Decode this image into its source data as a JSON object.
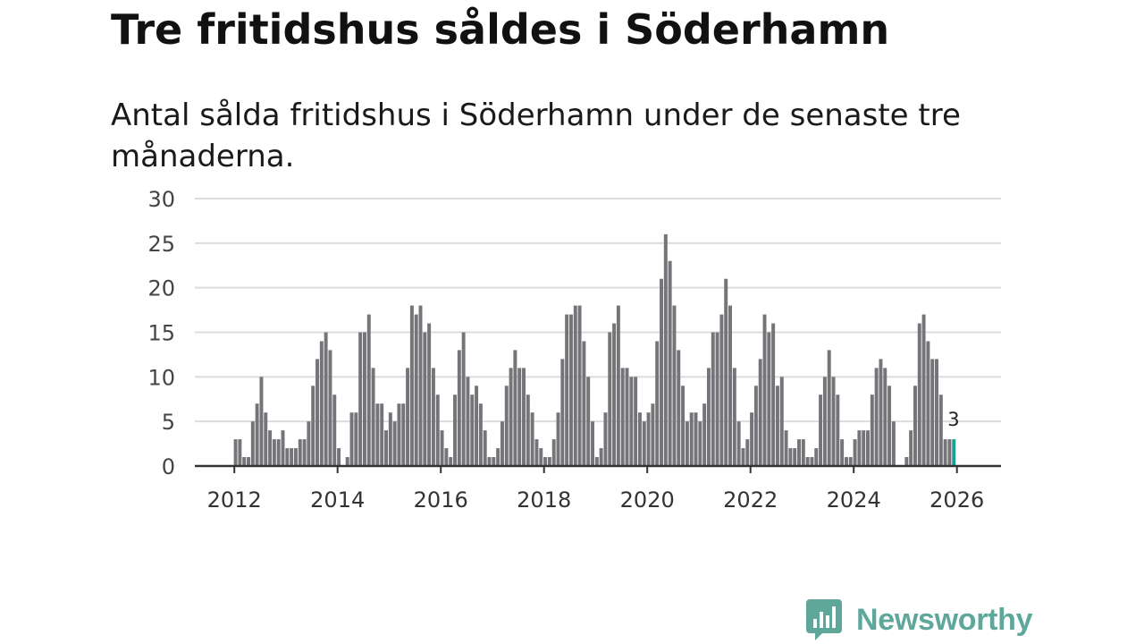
{
  "title": "Tre fritidshus såldes i Söderhamn",
  "subtitle": "Antal sålda fritidshus i Söderhamn under de senaste tre månaderna.",
  "brand": {
    "name": "Newsworthy",
    "icon": "bar-chart-speech-bubble-icon",
    "color": "#5fa79b"
  },
  "colors": {
    "bar": "#757579",
    "highlight": "#1a9e95",
    "grid": "#dcdcdc",
    "axis": "#333333"
  },
  "chart_data": {
    "type": "bar",
    "title": "Tre fritidshus såldes i Söderhamn",
    "xlabel": "",
    "ylabel": "",
    "ylim": [
      0,
      30
    ],
    "yticks": [
      "0",
      "5",
      "10",
      "15",
      "20",
      "25",
      "30"
    ],
    "xticks": [
      "2012",
      "2014",
      "2016",
      "2018",
      "2020",
      "2022",
      "2024",
      "2026"
    ],
    "x_start": "2012-01",
    "grid": "horizontal",
    "values": [
      3,
      3,
      1,
      1,
      5,
      7,
      10,
      6,
      4,
      3,
      3,
      4,
      2,
      2,
      2,
      3,
      3,
      5,
      9,
      12,
      14,
      15,
      13,
      8,
      2,
      0,
      1,
      6,
      6,
      15,
      15,
      17,
      11,
      7,
      7,
      4,
      6,
      5,
      7,
      7,
      11,
      18,
      17,
      18,
      15,
      16,
      11,
      8,
      4,
      2,
      1,
      8,
      13,
      15,
      10,
      8,
      9,
      7,
      4,
      1,
      1,
      2,
      5,
      9,
      11,
      13,
      11,
      11,
      8,
      6,
      3,
      2,
      1,
      1,
      3,
      6,
      12,
      17,
      17,
      18,
      18,
      14,
      10,
      5,
      1,
      2,
      6,
      15,
      16,
      18,
      11,
      11,
      10,
      10,
      6,
      5,
      6,
      7,
      14,
      21,
      26,
      23,
      18,
      13,
      9,
      5,
      6,
      6,
      5,
      7,
      11,
      15,
      15,
      17,
      21,
      18,
      11,
      5,
      2,
      3,
      6,
      9,
      12,
      17,
      15,
      16,
      9,
      10,
      4,
      2,
      2,
      3,
      3,
      1,
      1,
      2,
      8,
      10,
      13,
      10,
      8,
      3,
      1,
      1,
      3,
      4,
      4,
      4,
      8,
      11,
      12,
      11,
      9,
      5,
      0,
      0,
      1,
      4,
      9,
      16,
      17,
      14,
      12,
      12,
      8,
      3,
      3,
      3
    ],
    "highlight": {
      "index": 167,
      "value": 3,
      "label": "3"
    }
  }
}
